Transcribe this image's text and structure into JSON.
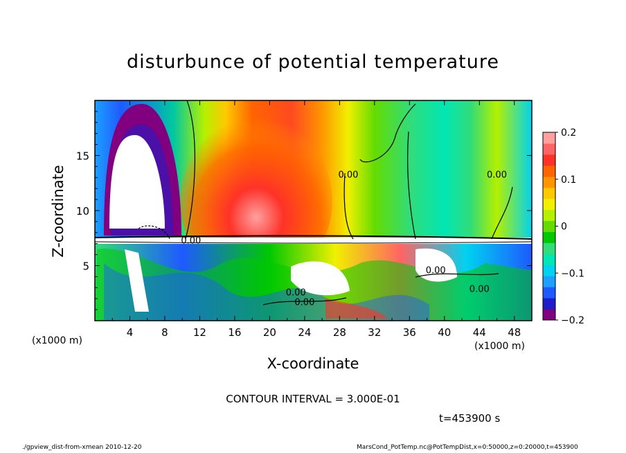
{
  "figure": {
    "title": "disturbunce of potential temperature",
    "contour_interval": "CONTOUR INTERVAL = 3.000E-01",
    "time_label": "t=453900 s",
    "footer_left": "./gpview_dist-from-xmean   2010-12-20",
    "footer_right": "MarsCond_PotTemp.nc@PotTempDist,x=0:50000,z=0:20000,t=453900",
    "x_unit_left": "(x1000 m)",
    "x_unit_right": "(x1000 m)"
  },
  "chart_data": {
    "type": "heatmap",
    "title": "disturbunce of potential temperature",
    "xlabel": "X-coordinate",
    "ylabel": "Z-coordinate",
    "x_unit": "(x1000 m)",
    "xlim": [
      0,
      50
    ],
    "ylim": [
      0,
      20
    ],
    "x_ticks": [
      4,
      8,
      12,
      16,
      20,
      24,
      28,
      32,
      36,
      40,
      44,
      48
    ],
    "y_ticks": [
      5,
      10,
      15
    ],
    "colorbar": {
      "range": [
        -0.2,
        0.2
      ],
      "tick_labels": [
        "0.2",
        "0.1",
        "0",
        "−0.1",
        "−0.2"
      ],
      "tick_values": [
        0.2,
        0.1,
        0,
        -0.1,
        -0.2
      ],
      "colors": [
        "#800080",
        "#1e1ec8",
        "#1e5aff",
        "#1ea0ff",
        "#00d2f0",
        "#00e6b4",
        "#32dc78",
        "#00c800",
        "#64dc00",
        "#b4f000",
        "#f0f000",
        "#ffc800",
        "#ff9600",
        "#ff6400",
        "#ff3228",
        "#ff6464",
        "#ffa0a0"
      ]
    },
    "contour_labels": [
      {
        "text": "0.00",
        "x": 29,
        "z": 13
      },
      {
        "text": "0.00",
        "x": 46,
        "z": 13
      },
      {
        "text": "0.00",
        "x": 11,
        "z": 7
      },
      {
        "text": "0.00",
        "x": 39,
        "z": 4.3
      },
      {
        "text": "0.00",
        "x": 44,
        "z": 2.6
      },
      {
        "text": "0.00",
        "x": 23,
        "z": 2.3
      },
      {
        "text": "0.00",
        "x": 24,
        "z": 1.4
      }
    ],
    "contour_interval": 0.3
  }
}
